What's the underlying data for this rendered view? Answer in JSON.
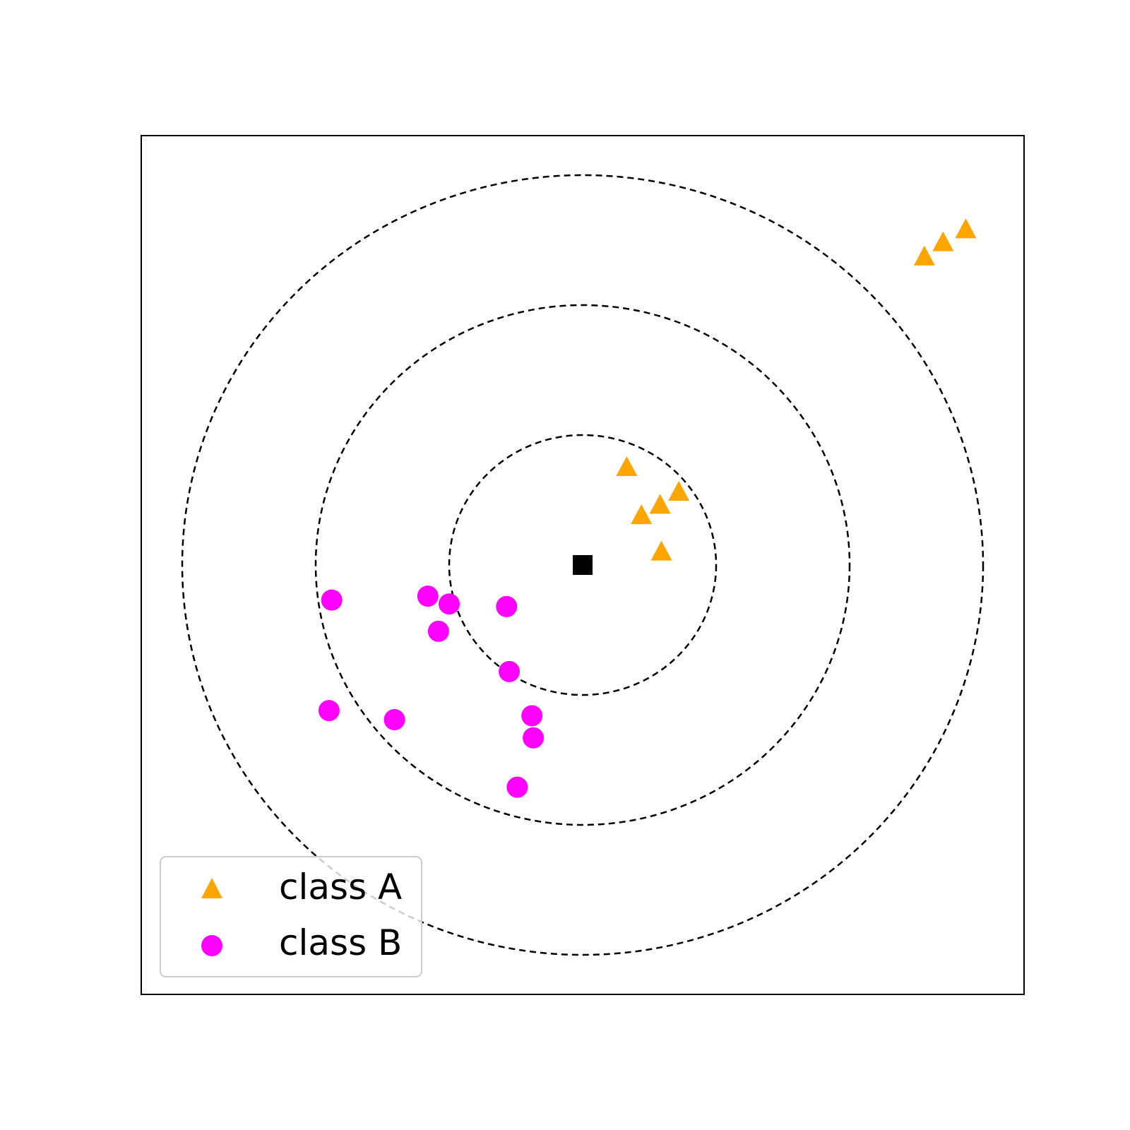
{
  "chart_data": {
    "type": "scatter",
    "title": "",
    "xlabel": "",
    "ylabel": "",
    "xlim": [
      -3.3,
      3.3
    ],
    "ylim": [
      -3.3,
      3.3
    ],
    "ticks_visible": false,
    "grid": false,
    "legend_position": "lower-left",
    "query_point": {
      "x": 0,
      "y": 0,
      "marker": "square",
      "color": "#000000"
    },
    "circles": [
      {
        "center": [
          0,
          0
        ],
        "radius": 1,
        "style": "dashed",
        "color": "#000000"
      },
      {
        "center": [
          0,
          0
        ],
        "radius": 2,
        "style": "dashed",
        "color": "#000000"
      },
      {
        "center": [
          0,
          0
        ],
        "radius": 3,
        "style": "dashed",
        "color": "#000000"
      }
    ],
    "series": [
      {
        "name": "class A",
        "marker": "triangle",
        "color": "#FFA500",
        "points": [
          [
            0.33,
            0.75
          ],
          [
            0.72,
            0.56
          ],
          [
            0.58,
            0.46
          ],
          [
            0.44,
            0.38
          ],
          [
            0.59,
            0.1
          ],
          [
            2.56,
            2.37
          ],
          [
            2.7,
            2.48
          ],
          [
            2.87,
            2.58
          ]
        ]
      },
      {
        "name": "class B",
        "marker": "circle",
        "color": "#FF00FF",
        "points": [
          [
            -1.88,
            -0.27
          ],
          [
            -1.16,
            -0.24
          ],
          [
            -1.0,
            -0.3
          ],
          [
            -0.57,
            -0.32
          ],
          [
            -1.08,
            -0.51
          ],
          [
            -0.55,
            -0.82
          ],
          [
            -1.9,
            -1.12
          ],
          [
            -1.41,
            -1.19
          ],
          [
            -0.38,
            -1.16
          ],
          [
            -0.37,
            -1.33
          ],
          [
            -0.49,
            -1.71
          ]
        ]
      }
    ]
  }
}
